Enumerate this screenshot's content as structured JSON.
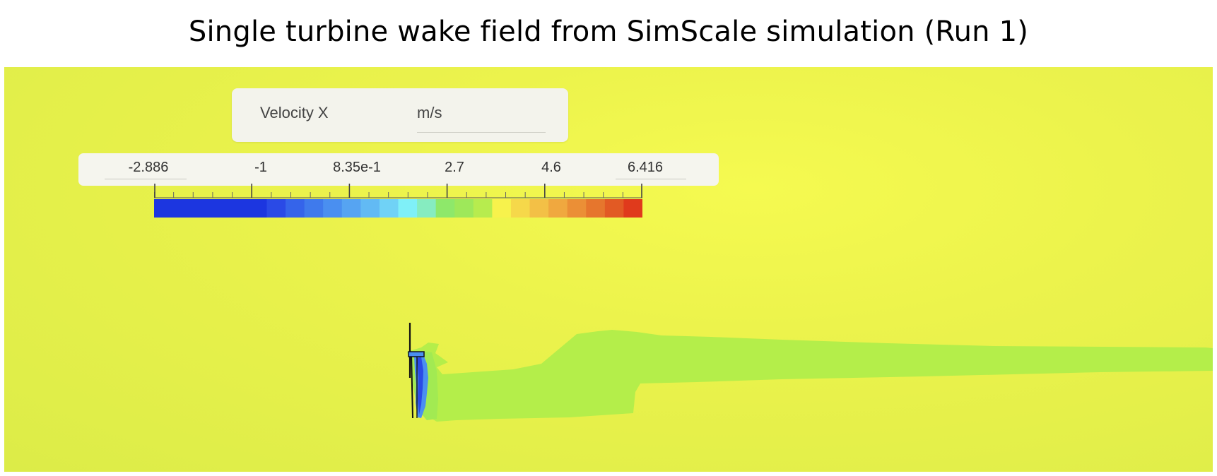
{
  "title": "Single turbine wake field from SimScale simulation (Run 1)",
  "legend": {
    "quantity": "Velocity X",
    "unit": "m/s",
    "tick_labels": [
      "-2.886",
      "-1",
      "8.35e-1",
      "2.7",
      "4.6",
      "6.416"
    ],
    "min_value": -2.886,
    "max_value": 6.416,
    "colors": [
      "#1c36e0",
      "#1c36e0",
      "#1c36e0",
      "#1c36e0",
      "#1c36e0",
      "#1c36e0",
      "#2a4ae6",
      "#3564ea",
      "#3f7aec",
      "#4a8ff0",
      "#56a4f2",
      "#62baf4",
      "#70d2f6",
      "#7ff0f8",
      "#86ecc0",
      "#8ee86a",
      "#9ee85a",
      "#b7ec4e",
      "#f7f24c",
      "#f6d84a",
      "#f3c046",
      "#f0a83f",
      "#eb8f36",
      "#e6762d",
      "#e25a24",
      "#e03a1c"
    ]
  },
  "turbine": {
    "label": "turbine"
  }
}
